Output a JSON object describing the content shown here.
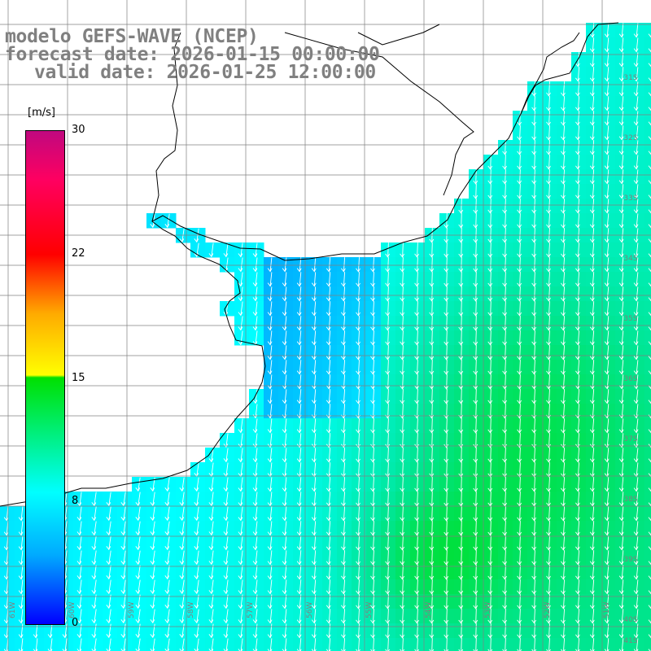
{
  "title": {
    "model": "modelo GEFS-WAVE (NCEP)",
    "forecast": "forecast date: 2026-01-15 00:00:00",
    "valid": "valid date: 2026-01-25 12:00:00"
  },
  "colorbar": {
    "unit": "[m/s]",
    "ticks": [
      "30",
      "22",
      "15",
      "8",
      "0"
    ],
    "tick_values": [
      30,
      22,
      15,
      8,
      0
    ],
    "min": 0,
    "max": 30,
    "colors": [
      "#0000ff",
      "#00aaff",
      "#00ffff",
      "#00e000",
      "#ffff00",
      "#ffaa00",
      "#ff0000",
      "#c0087f"
    ]
  },
  "grid": {
    "lat_labels": [
      "31S",
      "32S",
      "33S",
      "34S",
      "35S",
      "36S",
      "37S",
      "38S",
      "39S",
      "40S",
      "41S"
    ],
    "lon_labels": [
      "61W",
      "60W",
      "59W",
      "58W",
      "57W",
      "56W",
      "55W",
      "54W",
      "53W",
      "52W",
      "51W"
    ]
  },
  "colors": {
    "land": "#ffffff",
    "coast": "#000000",
    "grid": "#808080",
    "arrow": "#ffffff",
    "title_text": "#808080"
  },
  "field_description": "Wind speed shading with wind direction arrows mostly pointing south-southwest"
}
